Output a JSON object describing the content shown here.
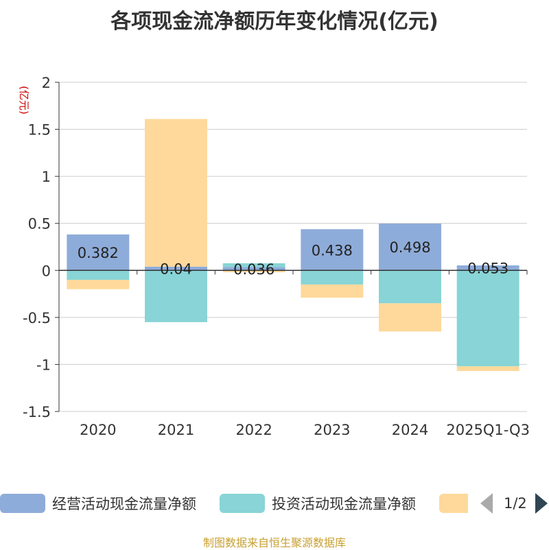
{
  "chart_data": {
    "type": "bar",
    "stacked": true,
    "title": "各项现金流净额历年变化情况(亿元)",
    "ylabel": "(亿元)",
    "xlabel": "",
    "categories": [
      "2020",
      "2021",
      "2022",
      "2023",
      "2024",
      "2025Q1-Q3"
    ],
    "ylim": [
      -1.5,
      2
    ],
    "yticks": [
      -1.5,
      -1,
      -0.5,
      0,
      0.5,
      1,
      1.5,
      2
    ],
    "ytick_labels": [
      "-1.5",
      "-1",
      "-0.5",
      "0",
      "0.5",
      "1",
      "1.5",
      "2"
    ],
    "grid": true,
    "series": [
      {
        "name": "经营活动现金流量净额",
        "color": "#8eacd9",
        "values": [
          0.382,
          0.04,
          0.036,
          0.438,
          0.498,
          0.053
        ],
        "labels": [
          "0.382",
          "0.04",
          "0.036",
          "0.438",
          "0.498",
          "0.053"
        ]
      },
      {
        "name": "投资活动现金流量净额",
        "color": "#88d4d6",
        "values": [
          -0.1,
          -0.55,
          0.04,
          -0.15,
          -0.35,
          -1.02
        ],
        "labels": null
      },
      {
        "name": "",
        "color": "#fed99b",
        "values": [
          -0.1,
          1.57,
          -0.02,
          -0.14,
          -0.3,
          -0.05
        ],
        "labels": null
      }
    ]
  },
  "legend": {
    "items": [
      {
        "label": "经营活动现金流量净额",
        "color": "#8eacd9"
      },
      {
        "label": "投资活动现金流量净额",
        "color": "#88d4d6"
      },
      {
        "label": "",
        "color": "#fed99b"
      }
    ],
    "page": "1/2"
  },
  "source": "制图数据来自恒生聚源数据库"
}
